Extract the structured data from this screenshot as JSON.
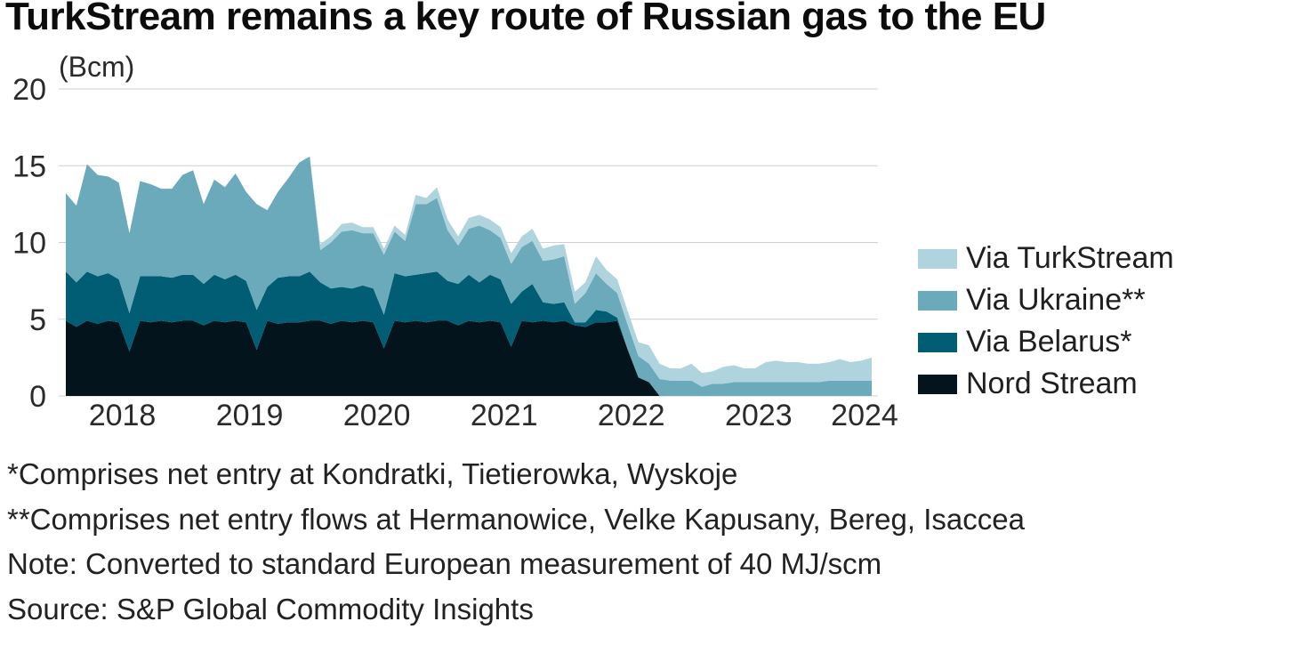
{
  "title": "TurkStream remains a key route of Russian gas to the EU",
  "notes": [
    "*Comprises net entry at Kondratki, Tietierowka, Wyskoje",
    "**Comprises net entry flows at Hermanowice, Velke Kapusany, Bereg, Isaccea",
    "Note: Converted to standard European measurement of 40 MJ/scm",
    "Source: S&P Global Commodity Insights"
  ],
  "chart_data": {
    "type": "area",
    "stacked": true,
    "ylabel": "(Bcm)",
    "ylim": [
      0,
      20
    ],
    "yticks": [
      "0",
      "5",
      "10",
      "15",
      "20"
    ],
    "x_tick_labels": [
      "2018",
      "2019",
      "2020",
      "2021",
      "2022",
      "2023",
      "2024"
    ],
    "x_start": "2018-01",
    "x_end": "2024-04",
    "grid": true,
    "legend_position": "right",
    "series": [
      {
        "name": "Nord Stream",
        "color": "#03141c",
        "values": [
          4.9,
          4.5,
          4.9,
          4.7,
          4.9,
          4.8,
          2.9,
          4.9,
          4.8,
          4.9,
          4.8,
          4.9,
          4.9,
          4.6,
          4.9,
          4.8,
          4.9,
          4.8,
          3.0,
          4.9,
          4.7,
          4.8,
          4.8,
          4.9,
          4.9,
          4.7,
          4.9,
          4.8,
          4.9,
          4.8,
          3.1,
          4.9,
          4.8,
          4.9,
          4.8,
          4.9,
          4.9,
          4.6,
          4.9,
          4.8,
          4.9,
          4.8,
          3.2,
          4.9,
          4.8,
          4.9,
          4.8,
          4.9,
          4.6,
          4.5,
          4.8,
          4.8,
          4.9,
          3.0,
          1.2,
          0.9,
          0.0,
          0,
          0,
          0,
          0,
          0,
          0,
          0,
          0,
          0,
          0,
          0,
          0,
          0,
          0,
          0,
          0,
          0,
          0,
          0,
          0
        ]
      },
      {
        "name": "Via Belarus*",
        "color": "#015d73",
        "values": [
          3.2,
          2.9,
          3.2,
          3.1,
          3.1,
          2.8,
          2.5,
          2.9,
          3.0,
          2.9,
          2.9,
          3.0,
          3.0,
          2.7,
          3.0,
          2.8,
          3.0,
          2.7,
          2.6,
          2.2,
          3.0,
          3.0,
          3.0,
          3.2,
          2.5,
          2.3,
          2.2,
          2.2,
          2.3,
          2.2,
          2.2,
          3.1,
          3.0,
          3.0,
          3.2,
          3.2,
          2.6,
          2.7,
          3.0,
          2.6,
          3.0,
          2.8,
          2.8,
          1.9,
          2.5,
          1.2,
          1.2,
          1.2,
          0.2,
          0.3,
          0.8,
          0.7,
          0.2,
          0.0,
          0,
          0,
          0,
          0,
          0,
          0,
          0,
          0,
          0,
          0,
          0,
          0,
          0,
          0,
          0,
          0,
          0,
          0,
          0,
          0,
          0,
          0,
          0
        ]
      },
      {
        "name": "Via Ukraine**",
        "color": "#6aaabb",
        "values": [
          5.1,
          5.0,
          7.0,
          6.6,
          6.3,
          6.3,
          5.2,
          6.2,
          6.0,
          5.7,
          5.8,
          6.5,
          6.8,
          5.2,
          6.2,
          6.0,
          6.6,
          5.8,
          6.9,
          5.0,
          5.6,
          6.4,
          7.4,
          7.5,
          2.1,
          3.0,
          3.6,
          3.8,
          3.4,
          3.6,
          3.9,
          2.7,
          2.3,
          4.6,
          4.5,
          4.8,
          3.3,
          2.5,
          3.0,
          3.7,
          2.9,
          2.7,
          2.6,
          2.9,
          2.8,
          2.7,
          2.9,
          3.0,
          1.2,
          1.9,
          2.4,
          1.8,
          1.6,
          1.6,
          1.4,
          1.2,
          1.1,
          1.0,
          1.0,
          1.0,
          0.6,
          0.8,
          0.8,
          0.9,
          0.9,
          0.9,
          0.9,
          0.9,
          0.9,
          0.9,
          0.9,
          0.9,
          1.0,
          1.0,
          1.0,
          1.0,
          1.0
        ]
      },
      {
        "name": "Via TurkStream",
        "color": "#b0d4de",
        "values": [
          0,
          0,
          0,
          0,
          0,
          0,
          0,
          0,
          0,
          0,
          0,
          0,
          0,
          0,
          0,
          0,
          0,
          0,
          0,
          0,
          0,
          0,
          0,
          0,
          0.4,
          0.4,
          0.5,
          0.5,
          0.4,
          0.4,
          0.4,
          0.4,
          0.4,
          0.6,
          0.4,
          0.7,
          0.7,
          0.6,
          0.7,
          0.7,
          0.7,
          0.7,
          0.7,
          0.7,
          0.8,
          0.8,
          0.9,
          0.8,
          0.8,
          0.7,
          1.1,
          0.9,
          0.9,
          0.9,
          0.9,
          1.2,
          1.0,
          0.8,
          0.8,
          1.1,
          0.9,
          0.8,
          1.1,
          1.1,
          0.9,
          0.9,
          1.3,
          1.4,
          1.3,
          1.3,
          1.2,
          1.2,
          1.2,
          1.4,
          1.2,
          1.3,
          1.5
        ]
      }
    ]
  }
}
